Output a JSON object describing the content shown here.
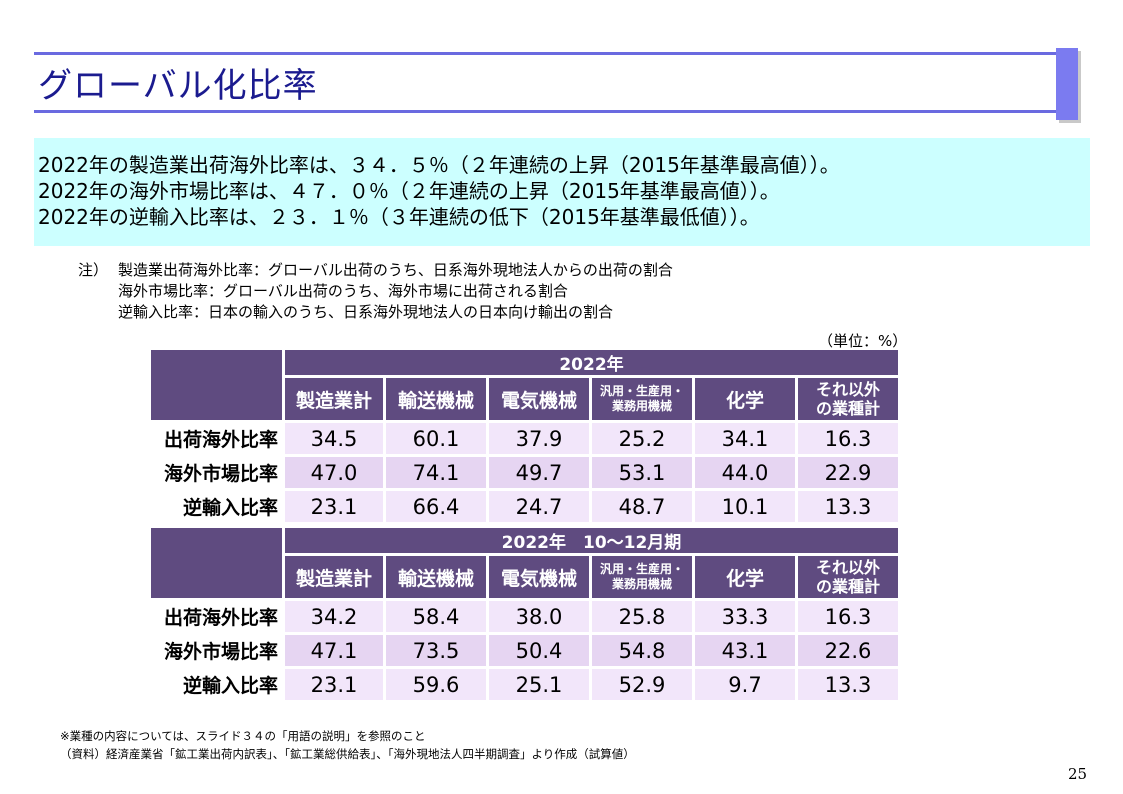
{
  "title": "グローバル化比率",
  "summary": [
    "2022年の製造業出荷海外比率は、３４．５％（２年連続の上昇（2015年基準最高値））。",
    "2022年の海外市場比率は、４７．０％（２年連続の上昇（2015年基準最高値））。",
    "2022年の逆輸入比率は、２３．１％（３年連続の低下（2015年基準最低値））。"
  ],
  "notes": {
    "label": "注）",
    "lines": [
      "製造業出荷海外比率：グローバル出荷のうち、日系海外現地法人からの出荷の割合",
      "海外市場比率：グローバル出荷のうち、海外市場に出荷される割合",
      "逆輸入比率：日本の輸入のうち、日系海外現地法人の日本向け輸出の割合"
    ]
  },
  "unit": "（単位：%）",
  "tables": [
    {
      "period": "2022年",
      "columns": [
        "製造業計",
        "輸送機械",
        "電気機械",
        "汎用・生産用・",
        "業務用機械",
        "化学",
        "それ以外",
        "の業種計"
      ],
      "rows": [
        {
          "label": "出荷海外比率",
          "values": [
            "34.5",
            "60.1",
            "37.9",
            "25.2",
            "34.1",
            "16.3"
          ]
        },
        {
          "label": "海外市場比率",
          "values": [
            "47.0",
            "74.1",
            "49.7",
            "53.1",
            "44.0",
            "22.9"
          ]
        },
        {
          "label": "逆輸入比率",
          "values": [
            "23.1",
            "66.4",
            "24.7",
            "48.7",
            "10.1",
            "13.3"
          ]
        }
      ]
    },
    {
      "period": "2022年　10～12月期",
      "columns": [
        "製造業計",
        "輸送機械",
        "電気機械",
        "汎用・生産用・",
        "業務用機械",
        "化学",
        "それ以外",
        "の業種計"
      ],
      "rows": [
        {
          "label": "出荷海外比率",
          "values": [
            "34.2",
            "58.4",
            "38.0",
            "25.8",
            "33.3",
            "16.3"
          ]
        },
        {
          "label": "海外市場比率",
          "values": [
            "47.1",
            "73.5",
            "50.4",
            "54.8",
            "43.1",
            "22.6"
          ]
        },
        {
          "label": "逆輸入比率",
          "values": [
            "23.1",
            "59.6",
            "25.1",
            "52.9",
            "9.7",
            "13.3"
          ]
        }
      ]
    }
  ],
  "footnotes": [
    "※業種の内容については、スライド３４の「用語の説明」を参照のこと",
    "（資料）経済産業省「鉱工業出荷内訳表」、「鉱工業総供給表」、「海外現地法人四半期調査」より作成（試算値）"
  ],
  "page_number": "25",
  "colors": {
    "title_text": "#1b1b8f",
    "title_rule": "#6a6ae0",
    "summary_bg": "#ccffff",
    "table_header": "#5f4b80",
    "cell_light": "#f2e6fa",
    "cell_mid": "#e6d5f2"
  }
}
